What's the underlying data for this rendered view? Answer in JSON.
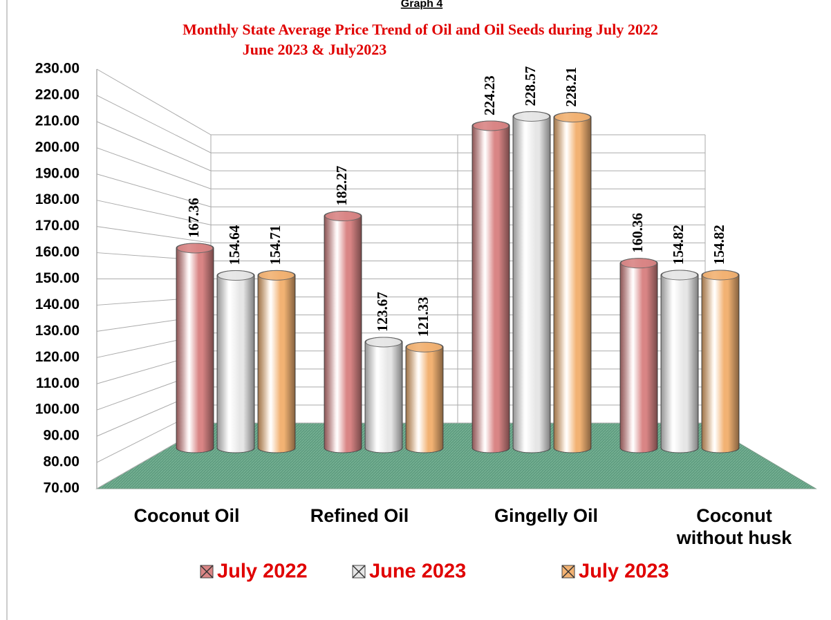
{
  "chart_data": {
    "type": "bar",
    "caption": "Graph 4",
    "title": "Monthly State Average Price Trend of Oil and Oil Seeds during  July 2022",
    "subtitle": "June 2023 &  July2023",
    "categories": [
      "Coconut Oil",
      "Refined Oil",
      "Gingelly Oil",
      "Coconut without husk"
    ],
    "series": [
      {
        "name": "July 2022",
        "color": "#d98585",
        "values": [
          167.36,
          182.27,
          224.23,
          160.36
        ]
      },
      {
        "name": "June 2023",
        "color": "#e6e6e6",
        "values": [
          154.64,
          123.67,
          228.57,
          154.82
        ]
      },
      {
        "name": "July 2023",
        "color": "#f2b273",
        "values": [
          154.71,
          121.33,
          228.21,
          154.82
        ]
      }
    ],
    "ylim": [
      70,
      230
    ],
    "yticks": [
      {
        "value": 70,
        "label": "70.00"
      },
      {
        "value": 80,
        "label": "80.00"
      },
      {
        "value": 90,
        "label": "90.00"
      },
      {
        "value": 100,
        "label": "100.00"
      },
      {
        "value": 110,
        "label": "110.00"
      },
      {
        "value": 120,
        "label": "120.00"
      },
      {
        "value": 130,
        "label": "130.00"
      },
      {
        "value": 140,
        "label": "140.00"
      },
      {
        "value": 150,
        "label": "150.00"
      },
      {
        "value": 160,
        "label": "160.00"
      },
      {
        "value": 170,
        "label": "170.00"
      },
      {
        "value": 180,
        "label": "180.00"
      },
      {
        "value": 190,
        "label": "190.00"
      },
      {
        "value": 200,
        "label": "200.00"
      },
      {
        "value": 210,
        "label": "210.00"
      },
      {
        "value": 220,
        "label": "220.00"
      },
      {
        "value": 230,
        "label": "230.00"
      }
    ],
    "grid": true,
    "legend": "bottom"
  }
}
